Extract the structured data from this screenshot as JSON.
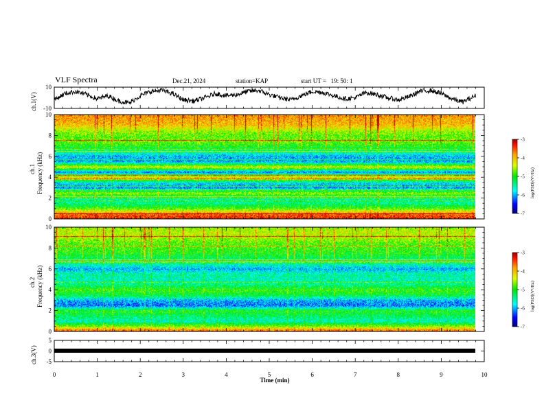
{
  "header": {
    "title": "VLF Spectra",
    "date": "Dec.21, 2024",
    "station_label": "station=",
    "station": "KAP",
    "start_label": "start  UT  =",
    "start_time": "19: 50: 1"
  },
  "colors": {
    "axis": "#000000",
    "signal_trace": "#000000",
    "colormap_low": "#000080",
    "colormap_high": "#a00000"
  },
  "chart_data": [
    {
      "type": "line",
      "name": "ch1-voltage",
      "ylabel": "ch.1(V)",
      "ylim": [
        -10,
        10
      ],
      "yticks": [
        "10",
        "-10"
      ],
      "xlim": [
        0,
        10
      ],
      "x_end": 9.8,
      "series": [
        {
          "name": "ch.1",
          "x": [
            0,
            0.25,
            0.5,
            0.75,
            1.0,
            1.25,
            1.5,
            1.75,
            2.0,
            2.25,
            2.5,
            2.75,
            3.0,
            3.25,
            3.5,
            3.75,
            4.0,
            4.25,
            4.5,
            4.75,
            5.0,
            5.25,
            5.5,
            5.75,
            6.0,
            6.25,
            6.5,
            6.75,
            7.0,
            7.25,
            7.5,
            7.75,
            8.0,
            8.25,
            8.5,
            8.75,
            9.0,
            9.25,
            9.5,
            9.8
          ],
          "values": [
            -2,
            4,
            6,
            3,
            -1,
            2,
            -3,
            -5,
            2,
            6,
            7,
            4,
            -2,
            -3,
            0,
            4,
            2,
            3,
            6,
            7,
            3,
            0,
            -2,
            2,
            6,
            5,
            2,
            -1,
            0,
            5,
            3,
            0,
            -2,
            1,
            6,
            7,
            4,
            -1,
            -4,
            2
          ]
        }
      ]
    },
    {
      "type": "heatmap",
      "name": "ch1-spectrogram",
      "ylabel": "ch.1",
      "ylabel2": "Frequency  (kHz)",
      "ylim": [
        0,
        10
      ],
      "yticks": [
        "0",
        "2",
        "4",
        "6",
        "8",
        "10"
      ],
      "xlim": [
        0,
        10
      ],
      "x_end": 9.8,
      "colorbar": {
        "label": "log(PSD)(V²/Hz)",
        "range": [
          -7,
          -3
        ],
        "ticks": [
          "-3",
          "-4",
          "-5",
          "-6",
          "-7"
        ]
      },
      "profile_freq_khz": [
        0,
        0.5,
        1,
        1.5,
        2,
        2.5,
        3,
        3.5,
        4,
        4.5,
        5,
        5.5,
        6,
        6.5,
        7,
        7.5,
        8,
        8.5,
        9,
        9.5,
        10
      ],
      "profile_log_psd": [
        -3.3,
        -3.6,
        -4.8,
        -5.4,
        -5.5,
        -4.6,
        -6.1,
        -5.8,
        -4.0,
        -6.2,
        -4.3,
        -6.0,
        -6.0,
        -5.4,
        -5.0,
        -4.7,
        -4.8,
        -4.5,
        -4.0,
        -3.9,
        -3.8
      ]
    },
    {
      "type": "heatmap",
      "name": "ch2-spectrogram",
      "ylabel": "ch.2",
      "ylabel2": "Frequency  (kHz)",
      "ylim": [
        0,
        10
      ],
      "yticks": [
        "0",
        "2",
        "4",
        "6",
        "8",
        "10"
      ],
      "xlim": [
        0,
        10
      ],
      "x_end": 9.8,
      "colorbar": {
        "label": "log(PSD)(V²/Hz)",
        "range": [
          -7,
          -3
        ],
        "ticks": [
          "-3",
          "-4",
          "-5",
          "-6",
          "-7"
        ]
      },
      "profile_freq_khz": [
        0,
        0.5,
        1,
        1.5,
        2,
        2.5,
        3,
        3.5,
        4,
        4.5,
        5,
        5.5,
        6,
        6.5,
        7,
        7.5,
        8,
        8.5,
        9,
        9.5,
        10
      ],
      "profile_log_psd": [
        -3.4,
        -4.6,
        -5.6,
        -5.3,
        -5.0,
        -6.2,
        -6.0,
        -5.2,
        -4.9,
        -5.4,
        -5.6,
        -5.5,
        -6.0,
        -5.5,
        -5.3,
        -5.0,
        -4.9,
        -4.8,
        -4.5,
        -4.4,
        -4.6
      ]
    },
    {
      "type": "line",
      "name": "ch3-voltage",
      "ylabel": "ch.3(V)",
      "ylim": [
        -5,
        5
      ],
      "yticks": [
        "5",
        "0",
        "-5"
      ],
      "xlim": [
        0,
        10
      ],
      "x_end": 9.8,
      "series": [
        {
          "name": "ch.3",
          "x": [
            0,
            9.8
          ],
          "values": [
            0,
            0
          ]
        }
      ]
    }
  ],
  "xaxis": {
    "label": "Time  (min)",
    "ticks": [
      "0",
      "1",
      "2",
      "3",
      "4",
      "5",
      "6",
      "7",
      "8",
      "9",
      "10"
    ]
  }
}
